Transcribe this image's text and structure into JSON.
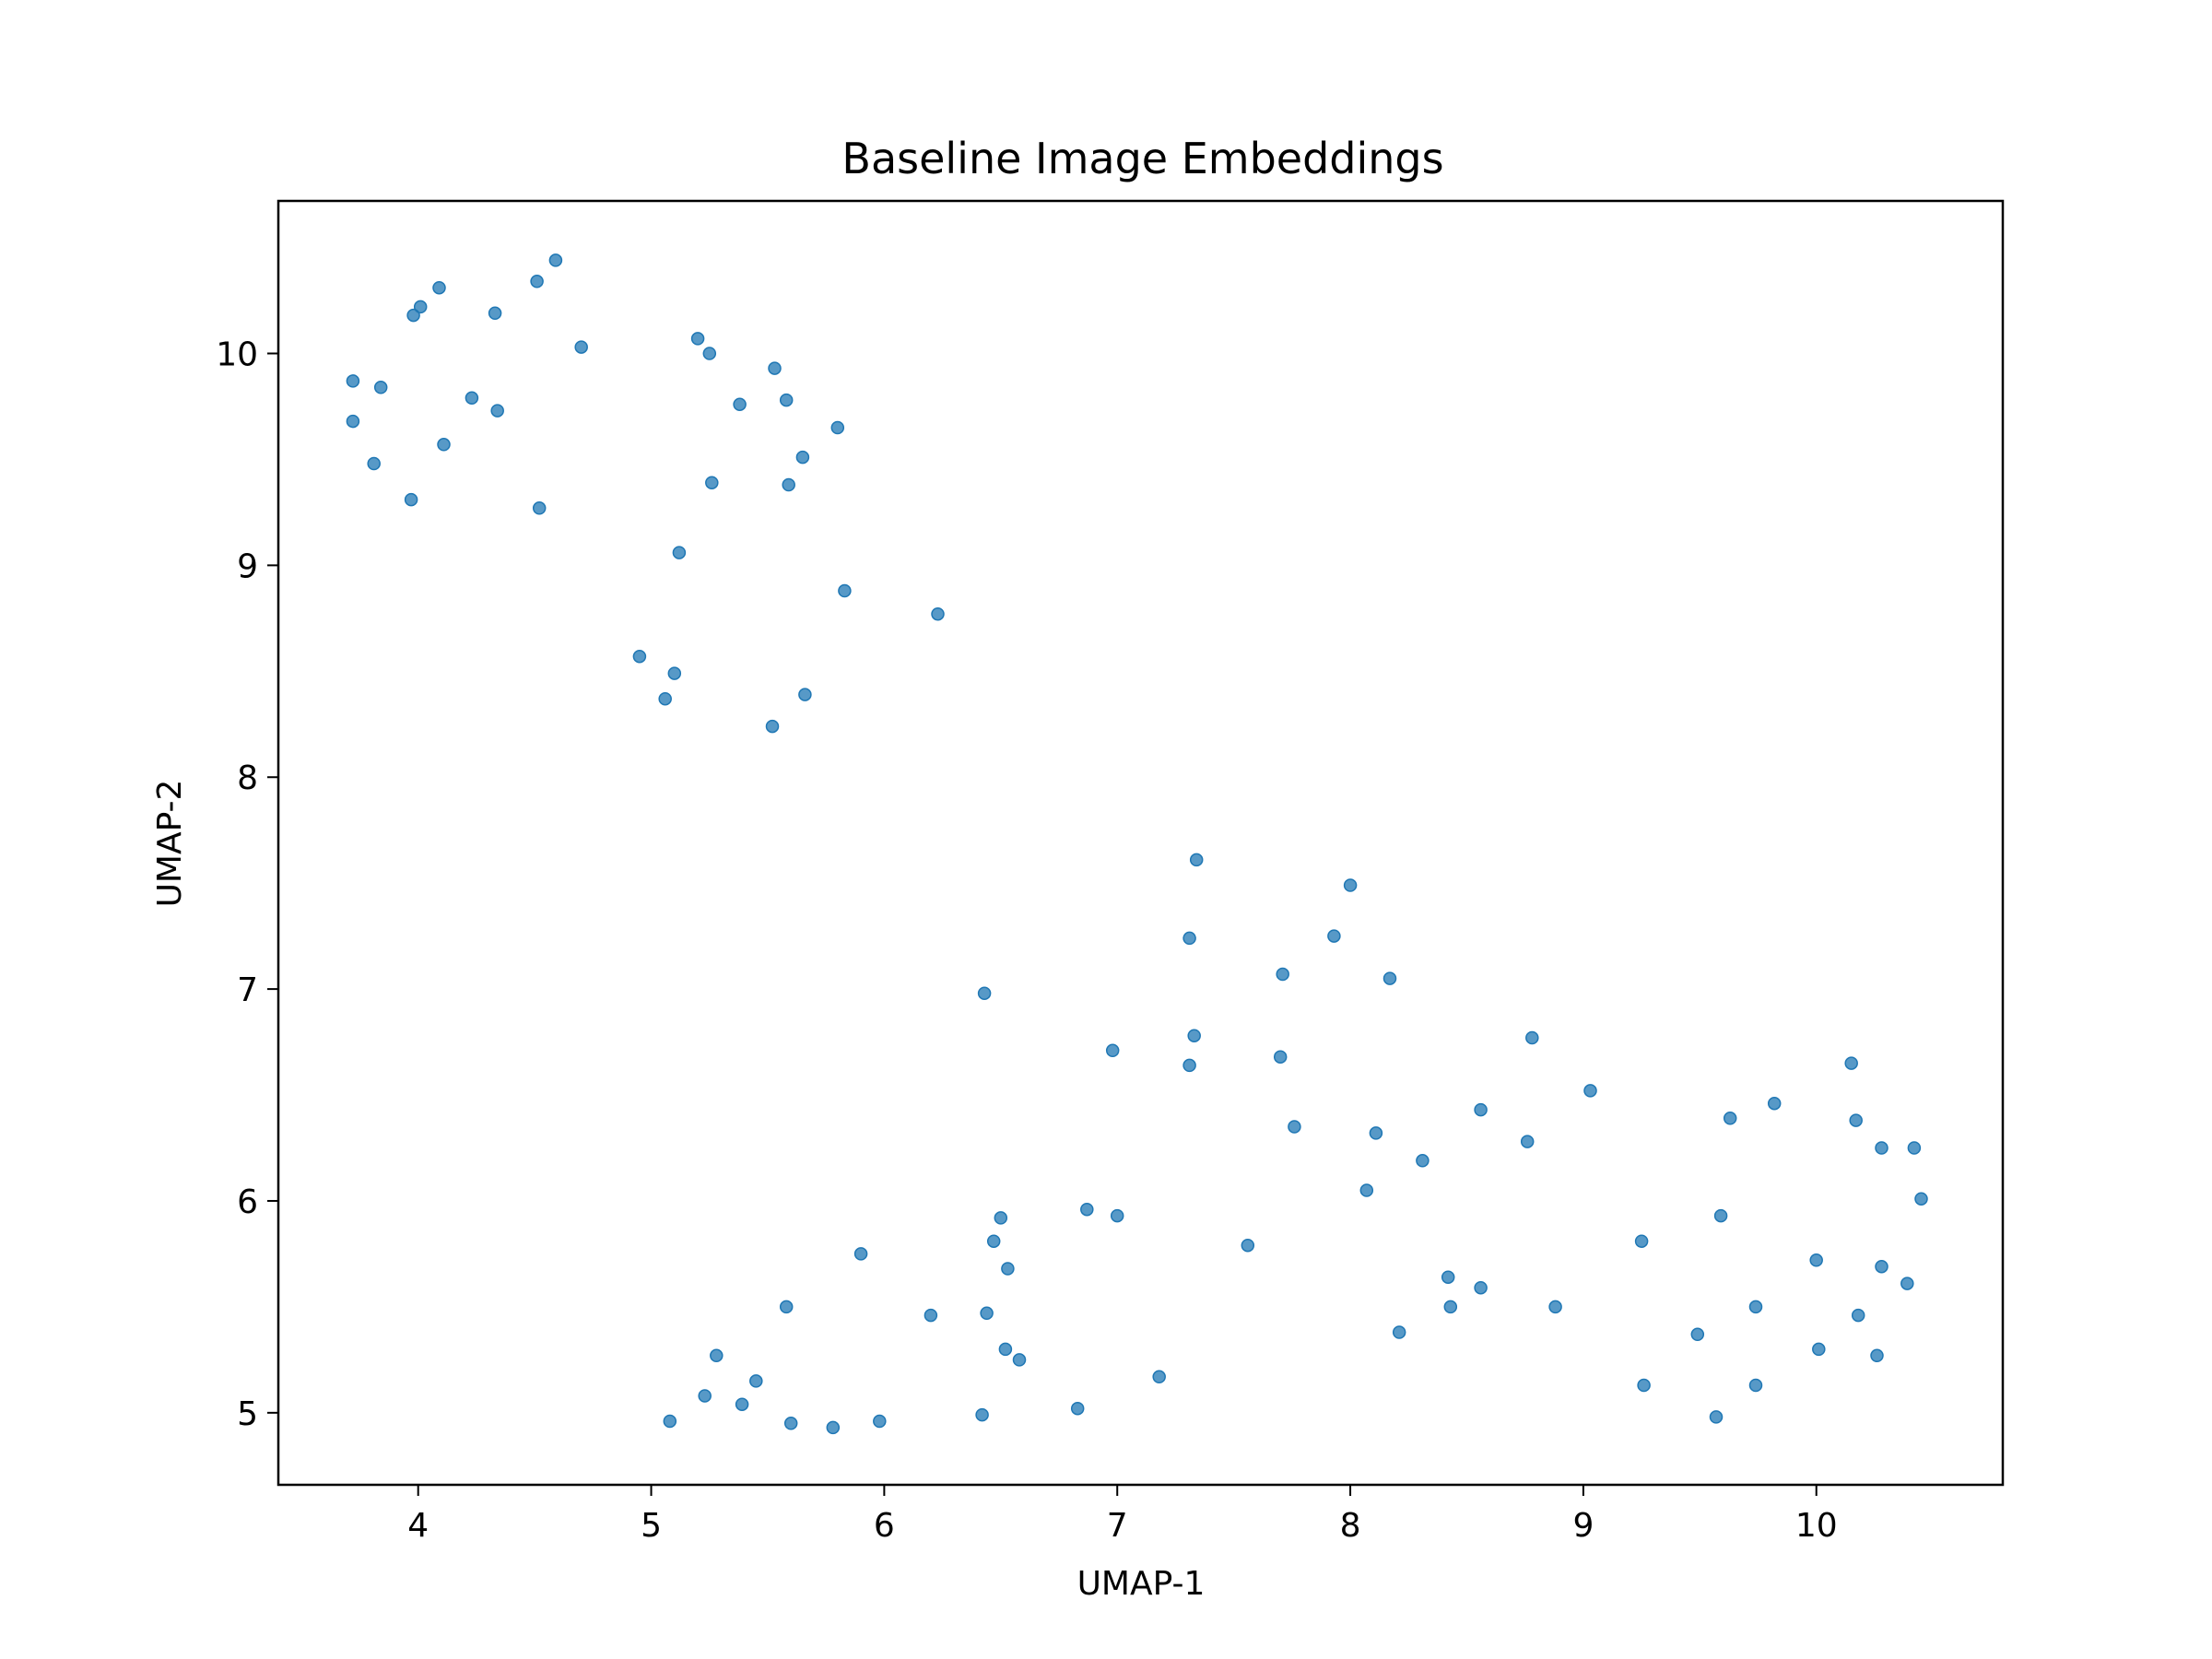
{
  "chart_data": {
    "type": "scatter",
    "title": "Baseline Image Embeddings",
    "xlabel": "UMAP-1",
    "ylabel": "UMAP-2",
    "xlim": [
      3.4,
      10.8
    ],
    "ylim": [
      4.66,
      10.72
    ],
    "xticks": [
      4,
      5,
      6,
      7,
      8,
      9,
      10
    ],
    "yticks": [
      5,
      6,
      7,
      8,
      9,
      10
    ],
    "grid": false,
    "marker_color": "#1f77b4",
    "x": [
      3.72,
      3.72,
      3.81,
      3.84,
      3.97,
      3.98,
      4.01,
      4.09,
      4.11,
      4.23,
      4.33,
      4.34,
      4.51,
      4.52,
      4.59,
      4.7,
      4.95,
      5.06,
      5.1,
      5.12,
      5.2,
      5.25,
      5.26,
      5.38,
      5.52,
      5.53,
      5.58,
      5.59,
      5.65,
      5.66,
      5.8,
      5.83,
      6.23,
      6.43,
      6.98,
      7.31,
      7.33,
      7.34,
      7.31,
      7.7,
      7.71,
      7.76,
      7.93,
      8.0,
      8.07,
      8.11,
      8.17,
      8.31,
      8.56,
      8.76,
      8.78,
      9.03,
      9.63,
      9.82,
      10.15,
      10.17,
      10.28,
      10.42,
      10.45,
      5.08,
      5.23,
      5.28,
      5.39,
      5.45,
      5.58,
      5.6,
      5.78,
      5.9,
      5.98,
      6.2,
      6.42,
      6.44,
      6.47,
      6.5,
      6.52,
      6.53,
      6.58,
      6.83,
      6.87,
      7.0,
      7.18,
      7.56,
      8.21,
      8.42,
      8.43,
      8.56,
      8.88,
      9.25,
      9.26,
      9.49,
      9.57,
      9.59,
      9.74,
      9.74,
      10.0,
      10.01,
      10.18,
      10.26,
      10.28,
      10.39
    ],
    "y": [
      9.87,
      9.68,
      9.48,
      9.84,
      9.31,
      10.18,
      10.22,
      10.31,
      9.57,
      9.79,
      10.19,
      9.73,
      10.34,
      9.27,
      10.44,
      10.03,
      8.57,
      8.37,
      8.49,
      9.06,
      10.07,
      10.0,
      9.39,
      9.76,
      8.24,
      9.93,
      9.78,
      9.38,
      9.51,
      8.39,
      9.65,
      8.88,
      8.77,
      6.98,
      6.71,
      6.64,
      6.78,
      7.61,
      7.24,
      6.68,
      7.07,
      6.35,
      7.25,
      7.49,
      6.05,
      6.32,
      7.05,
      6.19,
      6.43,
      6.28,
      6.77,
      6.52,
      6.39,
      6.46,
      6.65,
      6.38,
      6.25,
      6.25,
      6.01,
      4.96,
      5.08,
      5.27,
      5.04,
      5.15,
      5.5,
      4.95,
      4.93,
      5.75,
      4.96,
      5.46,
      4.99,
      5.47,
      5.81,
      5.92,
      5.3,
      5.68,
      5.25,
      5.02,
      5.96,
      5.93,
      5.17,
      5.79,
      5.38,
      5.64,
      5.5,
      5.59,
      5.5,
      5.81,
      5.13,
      5.37,
      4.98,
      5.93,
      5.5,
      5.13,
      5.72,
      5.3,
      5.46,
      5.27,
      5.69,
      5.61
    ]
  }
}
